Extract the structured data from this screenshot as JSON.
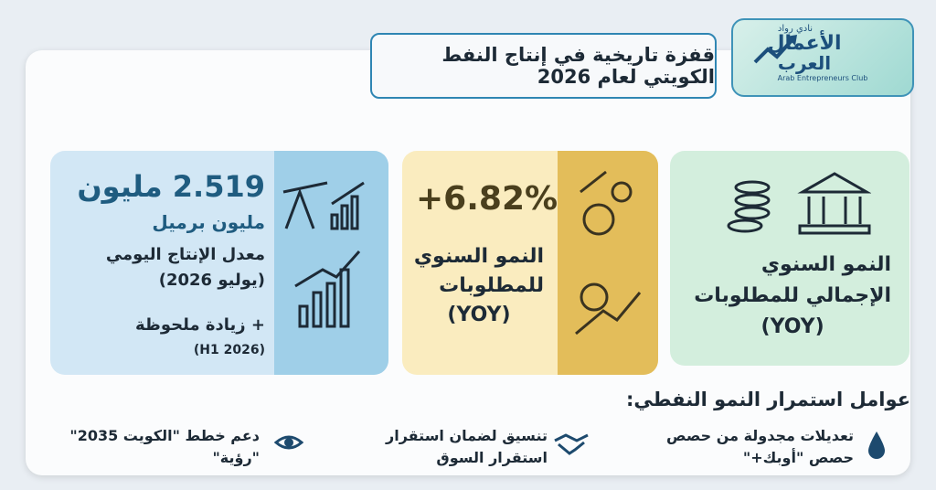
{
  "header": {
    "title": "قفزة تاريخية في إنتاج النفط الكويتي لعام 2026"
  },
  "logo": {
    "top": "نادي رواد",
    "line1": "الأعمال",
    "line2": "العرب",
    "english": "Arab Entrepreneurs Club"
  },
  "cards": [
    {
      "lines": [
        "النمو السنوي",
        "الإجمالي للمطلوبات",
        "(YOY)"
      ]
    },
    {
      "value": "+6.82%",
      "lines": [
        "النمو السنوي",
        "للمطلوبات",
        "(YOY)"
      ]
    },
    {
      "value": "2.519 مليون",
      "unit": "مليون برميل",
      "lines": [
        "معدل الإنتاج اليومي",
        "(يوليو 2026)"
      ],
      "note": "+ زيادة ملحوظة",
      "note_period": "(H1 2026)"
    }
  ],
  "factors": {
    "title": "عوامل استمرار النمو النفطي:",
    "items": [
      [
        "تعديلات مجدولة من حصص",
        "حصص \"أوبك+\""
      ],
      [
        "تنسيق لضمان استقرار",
        "استقرار السوق"
      ],
      [
        "دعم خطط \"الكويت 2035\"",
        "\"رؤية\""
      ]
    ]
  }
}
